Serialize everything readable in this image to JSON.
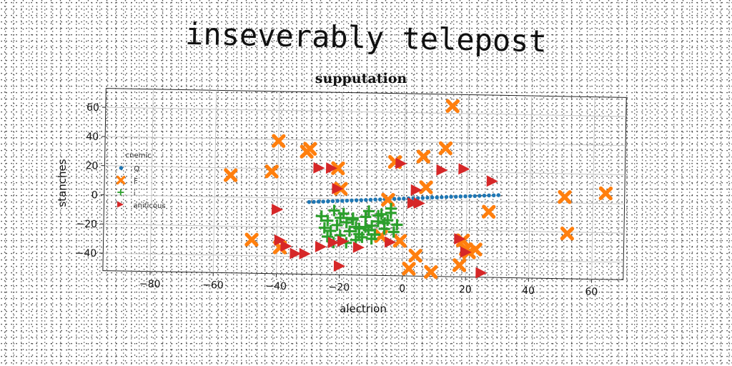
{
  "figure_title": "inseverably telepost",
  "chart_data": {
    "type": "scatter",
    "title": "supputation",
    "xlabel": "alectrion",
    "ylabel": "stanches",
    "xlim": [
      -95,
      70
    ],
    "ylim": [
      -52,
      73
    ],
    "xticks": [
      -80,
      -60,
      -40,
      -20,
      0,
      20,
      40,
      60
    ],
    "yticks": [
      -40,
      -20,
      0,
      20,
      40,
      60
    ],
    "xtick_labels": [
      "−80",
      "−60",
      "−40",
      "−20",
      "0",
      "20",
      "40",
      "60"
    ],
    "ytick_labels": [
      "−40",
      "−20",
      "0",
      "20",
      "40",
      "60"
    ],
    "grid": true,
    "legend": {
      "title": "cnemic",
      "placement": "center-left"
    },
    "series": [
      {
        "name": "Q",
        "marker": "circle",
        "color": "#1f77b4",
        "x": [
          -30,
          -27,
          -24,
          -21,
          -18,
          -15,
          -12,
          -9,
          -6,
          -3,
          0,
          3,
          6,
          9,
          12,
          15,
          18,
          21,
          24,
          27,
          30,
          -28.5,
          -25.5,
          -22.5,
          -19.5,
          -16.5,
          -13.5,
          -10.5,
          -7.5,
          -4.5,
          -1.5,
          1.5,
          4.5,
          7.5,
          10.5,
          13.5,
          16.5,
          19.5,
          22.5,
          25.5,
          28.5
        ],
        "y": [
          -2.5,
          -2.1,
          -1.8,
          -1.4,
          -1.1,
          -0.7,
          -0.4,
          0.0,
          0.3,
          0.7,
          1.0,
          1.4,
          1.7,
          2.1,
          2.4,
          2.8,
          3.1,
          3.5,
          3.8,
          4.2,
          4.5,
          -2.3,
          -2.0,
          -1.6,
          -1.3,
          -0.9,
          -0.6,
          -0.2,
          0.1,
          0.5,
          0.8,
          1.2,
          1.5,
          1.9,
          2.2,
          2.6,
          2.9,
          3.3,
          3.6,
          4.0,
          4.3
        ]
      },
      {
        "name": "F",
        "marker": "x",
        "color": "#ff7f0e",
        "x": [
          -55,
          -48,
          -42,
          -40,
          -39,
          -31,
          -30,
          -21,
          -20,
          -7,
          -5,
          -3,
          -1,
          2,
          4,
          6,
          7,
          9,
          13,
          15,
          18,
          19,
          20,
          21,
          23,
          27,
          51,
          52,
          64
        ],
        "y": [
          15,
          -29,
          18,
          39,
          -34,
          32,
          34,
          21,
          7,
          -25,
          0,
          26,
          -28,
          -47,
          -38,
          30,
          9,
          -49,
          36,
          65,
          -44,
          -27,
          -33,
          -35,
          -33,
          -7,
          4,
          -21,
          7
        ]
      },
      {
        "name": "i",
        "marker": "plus",
        "color": "#2ca02c",
        "x": [
          -26,
          -25,
          -24,
          -23,
          -22,
          -21,
          -20,
          -19,
          -18,
          -17,
          -16,
          -15,
          -14,
          -13,
          -12,
          -11,
          -10,
          -9,
          -8,
          -7,
          -6,
          -5,
          -4,
          -3,
          -2,
          -24,
          -22,
          -18,
          -16,
          -14,
          -12,
          -10,
          -8,
          -6,
          -4,
          -20,
          -15,
          -11
        ],
        "y": [
          -12,
          -20,
          -15,
          -22,
          -30,
          -18,
          -25,
          -10,
          -16,
          -22,
          -13,
          -28,
          -20,
          -26,
          -12,
          -8,
          -18,
          -24,
          -15,
          -10,
          -20,
          -14,
          -9,
          -22,
          -17,
          -26,
          -8,
          -30,
          -14,
          -24,
          -19,
          -27,
          -11,
          -16,
          -6,
          -13,
          -19,
          -21
        ]
      },
      {
        "name": "aniticous",
        "marker": "triangle-right",
        "color": "#d62728",
        "x": [
          -40,
          -39,
          -37,
          -34,
          -31,
          -27,
          -26,
          -23,
          -22,
          -21,
          -20,
          -19,
          -14,
          -4,
          -1,
          3,
          4,
          5,
          12,
          18,
          19,
          20,
          25,
          28
        ],
        "y": [
          -8,
          -29,
          -33,
          -38,
          -38,
          21,
          -33,
          21,
          -30,
          7,
          -46,
          -29,
          -33,
          -29,
          25,
          -2,
          7,
          -2,
          21,
          -26,
          22,
          -35,
          -49,
          14
        ]
      }
    ]
  }
}
